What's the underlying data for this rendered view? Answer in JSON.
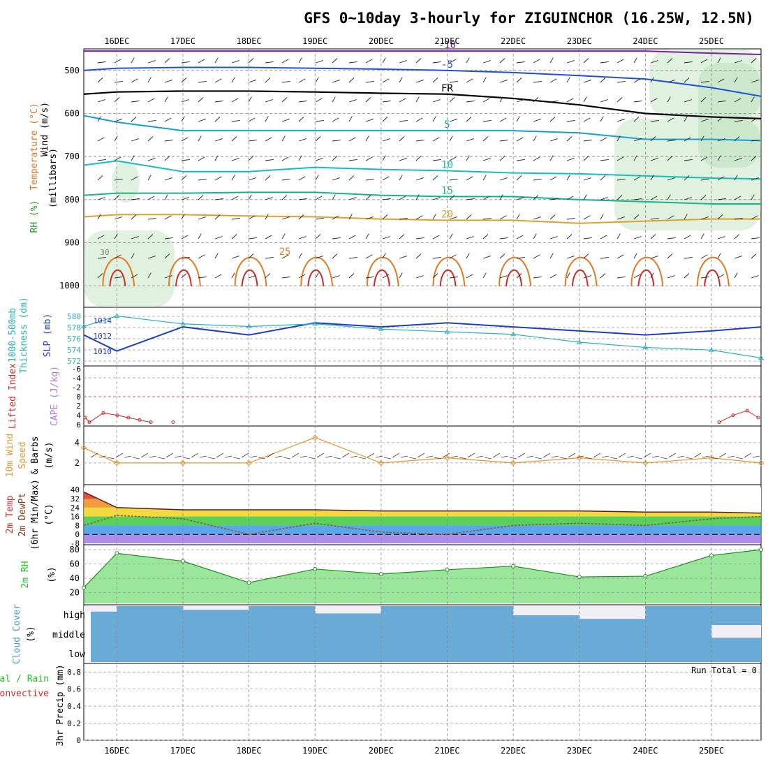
{
  "title": "GFS 0~10day 3-hourly for ZIGUINCHOR (16.25W, 12.5N)",
  "date_labels": [
    "16DEC",
    "17DEC",
    "18DEC",
    "19DEC",
    "20DEC",
    "21DEC",
    "22DEC",
    "23DEC",
    "24DEC",
    "25DEC"
  ],
  "colors": {
    "temp_cold": "#7b1fa2",
    "temp_blue": "#1e50dc",
    "temp_cyan": "#14a0d2",
    "temp_teal": "#14bebe",
    "temp_green": "#14b48c",
    "temp_orange": "#e1a028",
    "temp_dark_orange": "#e6781e",
    "temp_red": "#d22828",
    "freezing": "#000000",
    "rh_fill": "#a5d7a5",
    "slp": "#1e3cc8",
    "thickness": "#28b4b4",
    "wind_speed": "#e69632",
    "rh2m": "#1ec81e",
    "cloud": "#6aaad6",
    "cloud_clear": "#f2eef6"
  },
  "panel_upper_air": {
    "y_axis_label": "(millibars)",
    "side_labels": {
      "wind": "Wind (m/s)",
      "temperature": "Temperature (°C)",
      "rh": "RH (%)"
    },
    "pressure_ticks": [
      "500",
      "600",
      "700",
      "800",
      "900",
      "1000"
    ],
    "isotherm_labels": [
      "-10",
      "-5",
      "FR",
      "5",
      "10",
      "15",
      "20",
      "25",
      "30"
    ],
    "chart_data": {
      "type": "line",
      "title": "",
      "xlabel": "",
      "ylabel": "(millibars)",
      "ylim": [
        1050,
        450
      ],
      "x": [
        "15DEC 12Z",
        "16DEC",
        "17DEC",
        "18DEC",
        "19DEC",
        "20DEC",
        "21DEC",
        "22DEC",
        "23DEC",
        "24DEC",
        "25DEC",
        "25DEC 06Z"
      ],
      "series": [
        {
          "name": "-10",
          "values": [
            455,
            455,
            455,
            455,
            455,
            455,
            455,
            455,
            455,
            455,
            460,
            463
          ]
        },
        {
          "name": "-5",
          "values": [
            500,
            495,
            493,
            493,
            495,
            497,
            500,
            505,
            512,
            520,
            540,
            560
          ]
        },
        {
          "name": "FR",
          "values": [
            555,
            550,
            548,
            548,
            550,
            553,
            555,
            565,
            580,
            600,
            608,
            612
          ]
        },
        {
          "name": "5",
          "values": [
            605,
            620,
            640,
            640,
            640,
            640,
            640,
            640,
            645,
            660,
            660,
            663
          ]
        },
        {
          "name": "10",
          "values": [
            720,
            710,
            735,
            735,
            725,
            730,
            733,
            738,
            740,
            745,
            750,
            752
          ]
        },
        {
          "name": "15",
          "values": [
            790,
            785,
            785,
            783,
            783,
            790,
            793,
            793,
            800,
            805,
            810,
            810
          ]
        },
        {
          "name": "20",
          "values": [
            840,
            835,
            835,
            838,
            840,
            845,
            848,
            848,
            855,
            850,
            845,
            845
          ]
        }
      ]
    }
  },
  "panel_slp": {
    "left_label_lines": [
      "1000-500mb",
      "Thickness (dm)",
      "SLP (mb)"
    ],
    "left_ticks": [
      "580",
      "578",
      "576",
      "574",
      "572"
    ],
    "right_ticks": [
      "1014",
      "1012",
      "1010"
    ],
    "chart_data": {
      "type": "line",
      "title": "",
      "xlabel": "",
      "ylim": [
        1008.5,
        1015
      ],
      "x": [
        "15DEC 12Z",
        "16DEC",
        "17DEC",
        "18DEC",
        "19DEC",
        "20DEC",
        "21DEC",
        "22DEC",
        "23DEC",
        "24DEC",
        "25DEC",
        "25DEC 06Z"
      ],
      "series": [
        {
          "name": "SLP (mb)",
          "values": [
            1012.0,
            1010.0,
            1013.0,
            1012.0,
            1013.5,
            1013.0,
            1013.5,
            1013.0,
            1012.5,
            1012.0,
            1012.5,
            1013.0
          ]
        },
        {
          "name": "1000-500mb Thickness (dm)",
          "values": [
            578.0,
            580.0,
            578.5,
            578.0,
            578.5,
            577.5,
            577.0,
            576.5,
            575.0,
            574.0,
            573.5,
            572.0
          ]
        }
      ]
    }
  },
  "panel_cape": {
    "left_labels": [
      "Lifted Index",
      "CAPE (J/kg)"
    ],
    "ticks": [
      "-6",
      "-4",
      "-2",
      "0",
      "2",
      "4",
      "6"
    ],
    "chart_data": {
      "type": "line",
      "ylim": [
        6,
        -6
      ],
      "x": [
        "15DEC 12Z",
        "15DEC 15Z",
        "15DEC 18Z",
        "15DEC 21Z",
        "16DEC",
        "16DEC 03Z",
        "16DEC 06Z",
        "17DEC 00Z",
        "24DEC 18Z",
        "24DEC 21Z",
        "25DEC",
        "25DEC 03Z"
      ],
      "series": [
        {
          "name": "Lifted Index",
          "values": [
            4.5,
            5.5,
            3.5,
            4.0,
            4.5,
            5.0,
            5.5,
            5.5,
            5.5,
            4.0,
            3.0,
            4.5
          ]
        }
      ]
    }
  },
  "panel_wind": {
    "left_labels": [
      "10m Wind",
      "Speed",
      "& Barbs",
      "(m/s)"
    ],
    "ticks": [
      "2",
      "4"
    ],
    "chart_data": {
      "type": "line",
      "ylim": [
        0,
        5.5
      ],
      "x": [
        "15DEC 12Z",
        "16DEC",
        "17DEC",
        "18DEC",
        "19DEC",
        "20DEC",
        "21DEC",
        "22DEC",
        "23DEC",
        "24DEC",
        "25DEC",
        "25DEC 06Z"
      ],
      "series": [
        {
          "name": "10m Wind Speed",
          "values": [
            3.5,
            2.0,
            2.0,
            2.0,
            4.5,
            2.0,
            2.5,
            2.0,
            2.5,
            2.0,
            2.5,
            2.0
          ]
        }
      ]
    }
  },
  "panel_temp": {
    "left_labels": [
      "2m Temp",
      "2m DewPt",
      "(6hr Min/Max)",
      "(°C)"
    ],
    "ticks": [
      "40",
      "32",
      "24",
      "16",
      "8",
      "0",
      "-8"
    ],
    "chart_data": {
      "type": "line",
      "ylim": [
        -8,
        42
      ],
      "x": [
        "15DEC 12Z",
        "16DEC",
        "17DEC",
        "18DEC",
        "19DEC",
        "20DEC",
        "21DEC",
        "22DEC",
        "23DEC",
        "24DEC",
        "25DEC",
        "25DEC 06Z"
      ],
      "series": [
        {
          "name": "2m Temp",
          "values": [
            38,
            24,
            22,
            22,
            22,
            21,
            21,
            21,
            21,
            20,
            20,
            19
          ]
        },
        {
          "name": "2m DewPt",
          "values": [
            8,
            17,
            14,
            0,
            10,
            2,
            0,
            8,
            10,
            8,
            14,
            16
          ]
        }
      ]
    }
  },
  "panel_rh": {
    "left_labels": [
      "2m RH",
      "(%)"
    ],
    "ticks": [
      "80",
      "60",
      "40",
      "20"
    ],
    "chart_data": {
      "type": "area",
      "ylim": [
        5,
        85
      ],
      "x": [
        "15DEC 12Z",
        "16DEC",
        "17DEC",
        "18DEC",
        "19DEC",
        "20DEC",
        "21DEC",
        "22DEC",
        "23DEC",
        "24DEC",
        "25DEC",
        "25DEC 06Z"
      ],
      "series": [
        {
          "name": "2m RH",
          "values": [
            27,
            75,
            64,
            34,
            53,
            46,
            52,
            57,
            42,
            43,
            72,
            80
          ]
        }
      ]
    }
  },
  "panel_cloud": {
    "left_labels": [
      "Cloud Cover",
      "(%)"
    ],
    "layer_labels": [
      "high",
      "middle",
      "low"
    ],
    "chart_data": {
      "type": "area",
      "ylim": [
        0,
        100
      ],
      "x": [
        "15DEC 12Z",
        "16DEC",
        "17DEC",
        "18DEC",
        "19DEC",
        "20DEC",
        "21DEC",
        "22DEC",
        "23DEC",
        "24DEC",
        "25DEC",
        "25DEC 06Z"
      ],
      "series": [
        {
          "name": "high",
          "values": [
            70,
            100,
            80,
            100,
            60,
            100,
            100,
            50,
            30,
            100,
            100,
            40
          ]
        },
        {
          "name": "middle",
          "values": [
            100,
            100,
            100,
            100,
            100,
            100,
            100,
            100,
            100,
            100,
            30,
            40
          ]
        },
        {
          "name": "low",
          "values": [
            100,
            100,
            100,
            100,
            100,
            100,
            100,
            100,
            100,
            100,
            100,
            100
          ]
        }
      ]
    }
  },
  "panel_precip": {
    "left_labels": [
      "Total / Rain",
      "Convective",
      "3hr Precip (mm)"
    ],
    "run_total": "Run Total = 0",
    "ticks": [
      "0.8",
      "0.6",
      "0.4",
      "0.2",
      "0"
    ],
    "chart_data": {
      "type": "bar",
      "ylim": [
        0,
        0.9
      ],
      "x": [
        "15DEC 12Z",
        "16DEC",
        "17DEC",
        "18DEC",
        "19DEC",
        "20DEC",
        "21DEC",
        "22DEC",
        "23DEC",
        "24DEC",
        "25DEC",
        "25DEC 06Z"
      ],
      "series": [
        {
          "name": "Total / Rain",
          "values": [
            0,
            0,
            0,
            0,
            0,
            0,
            0,
            0,
            0,
            0,
            0,
            0
          ]
        }
      ]
    }
  }
}
